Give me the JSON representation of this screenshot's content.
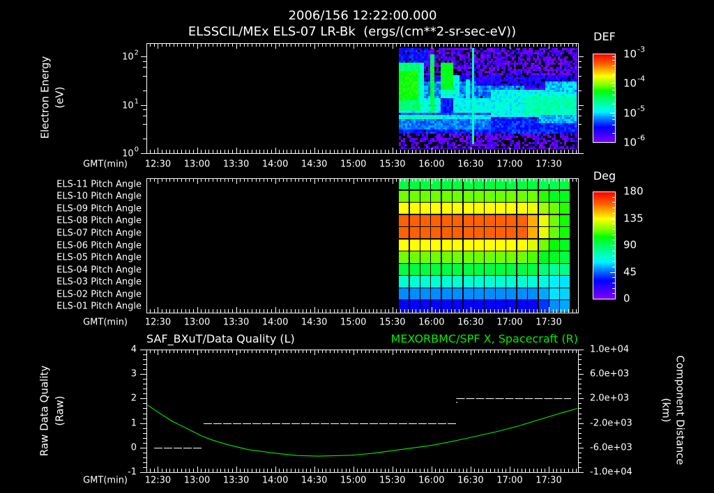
{
  "header": {
    "timestamp": "2006/156 12:22:00.000"
  },
  "colors": {
    "background": "#000000",
    "foreground": "#ffffff",
    "position_series": "#00ee00"
  },
  "colormap": [
    [
      0.0,
      "#8000ff"
    ],
    [
      0.17,
      "#0000ff"
    ],
    [
      0.28,
      "#0090ff"
    ],
    [
      0.34,
      "#00f0ff"
    ],
    [
      0.39,
      "#00ffd0"
    ],
    [
      0.47,
      "#00ff80"
    ],
    [
      0.53,
      "#00ff40"
    ],
    [
      0.58,
      "#00ff00"
    ],
    [
      0.64,
      "#70ff00"
    ],
    [
      0.75,
      "#ffff00"
    ],
    [
      0.89,
      "#ff6000"
    ],
    [
      1.0,
      "#ff0000"
    ]
  ],
  "chart_data": [
    {
      "id": "electron-energy-spectrogram",
      "type": "heatmap",
      "title": "ELSSCIL/MEx ELS-07 LR-Bk  (ergs/(cm**2-sr-sec-eV))",
      "xlabel": "GMT(min)",
      "ylabel": "Electron Energy",
      "yunits": "(eV)",
      "yscale": "log",
      "xlim": [
        "12:22",
        "17:52"
      ],
      "ylim": [
        1,
        188
      ],
      "x_ticks": [
        "12:30",
        "13:00",
        "13:30",
        "14:00",
        "14:30",
        "15:00",
        "15:30",
        "16:00",
        "16:30",
        "17:00",
        "17:30"
      ],
      "y_ticks": [
        {
          "label": "10",
          "sup": "2",
          "value": 100
        },
        {
          "label": "10",
          "sup": "1",
          "value": 10
        },
        {
          "label": "10",
          "sup": "0",
          "value": 1
        }
      ],
      "data_extent": {
        "x": [
          "15:35",
          "17:52"
        ],
        "y": [
          1.2,
          150
        ]
      },
      "colorbar": {
        "title": "DEF",
        "scale": "log",
        "range": [
          1e-06,
          0.001
        ],
        "labels": [
          {
            "label": "10",
            "sup": "-3",
            "value": -3
          },
          {
            "label": "10",
            "sup": "-4",
            "value": -4
          },
          {
            "label": "10",
            "sup": "-5",
            "value": -5
          },
          {
            "label": "10",
            "sup": "-6",
            "value": -6
          }
        ]
      },
      "feature_format": "[u0,u1,v0,v1,level,noise,dropout]; u = time fraction of data_extent (left to right), v = energy fraction (high to low), level = colorbar fraction (log DEF)",
      "features": [
        [
          0.0,
          1.0,
          0.0,
          0.34,
          0.05,
          0.08,
          0.28
        ],
        [
          0.0,
          1.0,
          0.27,
          0.4,
          0.13,
          0.07,
          0.1
        ],
        [
          0.0,
          1.0,
          0.68,
          0.85,
          0.19,
          0.06,
          0.03
        ],
        [
          0.0,
          1.0,
          0.84,
          1.0,
          0.05,
          0.07,
          0.4
        ],
        [
          0.0,
          0.43,
          0.34,
          0.49,
          0.27,
          0.06,
          0.0
        ],
        [
          0.43,
          0.7,
          0.38,
          0.49,
          0.26,
          0.06,
          0.02
        ],
        [
          0.0,
          0.55,
          0.49,
          0.64,
          0.36,
          0.05,
          0.0
        ],
        [
          0.51,
          1.0,
          0.42,
          0.68,
          0.36,
          0.05,
          0.0
        ],
        [
          0.7,
          1.0,
          0.47,
          0.66,
          0.42,
          0.05,
          0.0
        ],
        [
          0.82,
          1.0,
          0.34,
          0.43,
          0.32,
          0.06,
          0.0
        ],
        [
          0.78,
          1.0,
          0.67,
          0.74,
          0.3,
          0.05,
          0.0
        ],
        [
          0.0,
          0.51,
          0.64,
          0.665,
          0.22,
          0.04,
          0.0
        ],
        [
          0.0,
          0.24,
          0.665,
          0.71,
          0.42,
          0.04,
          0.0
        ],
        [
          0.24,
          0.51,
          0.665,
          0.71,
          0.34,
          0.04,
          0.0
        ],
        [
          0.0,
          0.51,
          0.71,
          0.81,
          0.26,
          0.05,
          0.0
        ],
        [
          0.0,
          0.16,
          0.0,
          0.14,
          0.17,
          0.06,
          0.05
        ],
        [
          0.0,
          0.115,
          0.14,
          0.62,
          0.48,
          0.05,
          0.0
        ],
        [
          0.0,
          0.105,
          0.23,
          0.51,
          0.58,
          0.04,
          0.0
        ],
        [
          0.115,
          0.14,
          0.14,
          0.65,
          0.4,
          0.05,
          0.0
        ],
        [
          0.17,
          0.2,
          0.07,
          0.65,
          0.52,
          0.05,
          0.0
        ],
        [
          0.23,
          0.3,
          0.14,
          0.41,
          0.56,
          0.04,
          0.0
        ],
        [
          0.23,
          0.3,
          0.41,
          0.49,
          0.4,
          0.05,
          0.0
        ],
        [
          0.235,
          0.3,
          0.49,
          0.64,
          0.18,
          0.05,
          0.0
        ],
        [
          0.31,
          0.34,
          0.27,
          0.62,
          0.36,
          0.05,
          0.0
        ],
        [
          0.375,
          0.4,
          0.31,
          0.62,
          0.38,
          0.05,
          0.0
        ],
        [
          0.41,
          0.425,
          0.0,
          0.96,
          0.42,
          0.03,
          0.0
        ]
      ]
    },
    {
      "id": "pitch-angles",
      "type": "heatmap",
      "xlabel": "GMT(min)",
      "xlim": [
        "12:22",
        "17:52"
      ],
      "x_ticks": [
        "12:30",
        "13:00",
        "13:30",
        "14:00",
        "14:30",
        "15:00",
        "15:30",
        "16:00",
        "16:30",
        "17:00",
        "17:30"
      ],
      "data_extent": {
        "x": [
          "15:35",
          "17:47"
        ]
      },
      "rows": [
        {
          "label": "ELS-11 Pitch Angle",
          "values": [
            95,
            95,
            95,
            95,
            95,
            95,
            95,
            95,
            95,
            95,
            95,
            95,
            95,
            93,
            92,
            95
          ]
        },
        {
          "label": "ELS-10 Pitch Angle",
          "values": [
            115,
            115,
            115,
            115,
            115,
            115,
            115,
            115,
            115,
            115,
            115,
            115,
            115,
            108,
            100,
            100
          ]
        },
        {
          "label": "ELS-09 Pitch Angle",
          "values": [
            135,
            135,
            135,
            135,
            135,
            135,
            135,
            135,
            135,
            135,
            135,
            135,
            132,
            122,
            115,
            108
          ]
        },
        {
          "label": "ELS-08 Pitch Angle",
          "values": [
            160,
            160,
            160,
            160,
            160,
            160,
            160,
            160,
            160,
            160,
            160,
            160,
            148,
            132,
            115,
            106
          ]
        },
        {
          "label": "ELS-07 Pitch Angle",
          "values": [
            160,
            160,
            160,
            160,
            160,
            160,
            160,
            160,
            160,
            160,
            160,
            160,
            148,
            132,
            114,
            106
          ]
        },
        {
          "label": "ELS-06 Pitch Angle",
          "values": [
            135,
            135,
            135,
            135,
            135,
            135,
            135,
            135,
            135,
            135,
            135,
            135,
            130,
            115,
            105,
            100
          ]
        },
        {
          "label": "ELS-05 Pitch Angle",
          "values": [
            115,
            115,
            115,
            115,
            115,
            115,
            115,
            115,
            115,
            115,
            115,
            115,
            112,
            100,
            99,
            95
          ]
        },
        {
          "label": "ELS-04 Pitch Angle",
          "values": [
            95,
            95,
            95,
            95,
            95,
            95,
            95,
            95,
            95,
            95,
            95,
            95,
            95,
            86,
            80,
            83
          ]
        },
        {
          "label": "ELS-03 Pitch Angle",
          "values": [
            70,
            70,
            70,
            70,
            70,
            70,
            70,
            70,
            70,
            70,
            70,
            70,
            70,
            67,
            62,
            60
          ]
        },
        {
          "label": "ELS-02 Pitch Angle",
          "values": [
            50,
            50,
            50,
            50,
            50,
            50,
            50,
            50,
            50,
            50,
            50,
            50,
            50,
            53,
            60,
            58
          ]
        },
        {
          "label": "ELS-01 Pitch Angle",
          "values": [
            30,
            30,
            30,
            30,
            30,
            30,
            30,
            30,
            30,
            30,
            30,
            30,
            30,
            38,
            50,
            53
          ]
        }
      ],
      "colorbar": {
        "title": "Deg",
        "range": [
          0,
          180
        ],
        "labels": [
          {
            "label": "180",
            "value": 180
          },
          {
            "label": "135",
            "value": 135
          },
          {
            "label": "90",
            "value": 90
          },
          {
            "label": "45",
            "value": 45
          },
          {
            "label": "0",
            "value": 0
          }
        ]
      }
    },
    {
      "id": "data-quality-and-position",
      "type": "line",
      "xlabel": "GMT(min)",
      "xlim": [
        "12:22",
        "17:52"
      ],
      "x_ticks": [
        "12:30",
        "13:00",
        "13:30",
        "14:00",
        "14:30",
        "15:00",
        "15:30",
        "16:00",
        "16:30",
        "17:00",
        "17:30"
      ],
      "left_axis": {
        "title": "SAF_BXuT/Data Quality (L)",
        "label": "Raw Data Quality",
        "units": "(Raw)",
        "range": [
          -1,
          4
        ],
        "ticks": [
          {
            "label": "4",
            "value": 4
          },
          {
            "label": "3",
            "value": 3
          },
          {
            "label": "2",
            "value": 2
          },
          {
            "label": "1",
            "value": 1
          },
          {
            "label": "0",
            "value": 0
          },
          {
            "label": "-1",
            "value": -1
          }
        ]
      },
      "right_axis": {
        "title": "MEXORBMC/SPF X, Spacecraft (R)",
        "label": "Component Distance",
        "units": "(km)",
        "range": [
          -10000,
          10000
        ],
        "ticks": [
          {
            "label": "1.0e+04",
            "value": 10000
          },
          {
            "label": "6.0e+03",
            "value": 6000
          },
          {
            "label": "2.0e+03",
            "value": 2000
          },
          {
            "label": "-2.0e+03",
            "value": -2000
          },
          {
            "label": "-6.0e+03",
            "value": -6000
          },
          {
            "label": "-1.0e+04",
            "value": -10000
          }
        ]
      },
      "series": [
        {
          "name": "SAF_BXuT/Data Quality",
          "axis": "left",
          "color": "#ffffff",
          "style": "dashed",
          "segments": [
            {
              "from": "12:27",
              "to": "13:04",
              "value": 0
            },
            {
              "from": "13:05",
              "to": "16:19",
              "value": 1
            },
            {
              "from": "16:19",
              "to": "17:47",
              "value": 2
            }
          ],
          "points": [
            {
              "time": "16:19",
              "value": 1.87
            }
          ]
        },
        {
          "name": "MEXORBMC/SPF X, Spacecraft",
          "axis": "right",
          "color": "#00ee00",
          "style": "solid",
          "points": [
            [
              "12:22",
              950
            ],
            [
              "12:30",
              -200
            ],
            [
              "12:41",
              -1700
            ],
            [
              "12:52",
              -2850
            ],
            [
              "13:04",
              -4150
            ],
            [
              "13:13",
              -4850
            ],
            [
              "13:25",
              -5600
            ],
            [
              "13:40",
              -6350
            ],
            [
              "14:03",
              -7000
            ],
            [
              "14:17",
              -7300
            ],
            [
              "14:33",
              -7400
            ],
            [
              "14:58",
              -7250
            ],
            [
              "15:14",
              -6950
            ],
            [
              "15:30",
              -6500
            ],
            [
              "15:46",
              -6050
            ],
            [
              "16:01",
              -5600
            ],
            [
              "16:18",
              -4900
            ],
            [
              "16:34",
              -4150
            ],
            [
              "16:50",
              -3400
            ],
            [
              "17:07",
              -2450
            ],
            [
              "17:24",
              -1350
            ],
            [
              "17:42",
              -200
            ],
            [
              "17:52",
              400
            ]
          ]
        }
      ]
    }
  ]
}
